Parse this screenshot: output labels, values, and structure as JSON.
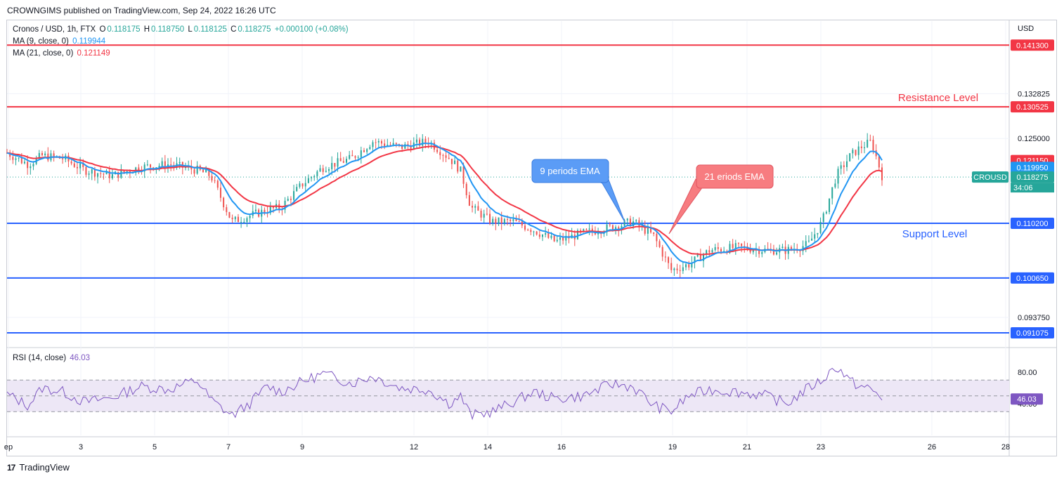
{
  "header": {
    "publisher": "CROWNGIMS published on TradingView.com, Sep 24, 2022 16:26 UTC"
  },
  "legend": {
    "symbol": "Cronos / USD, 1h, FTX",
    "o_label": "O",
    "o_value": "0.118175",
    "h_label": "H",
    "h_value": "0.118750",
    "l_label": "L",
    "l_value": "0.118125",
    "c_label": "C",
    "c_value": "0.118275",
    "change": "+0.000100 (+0.08%)",
    "ma9_label": "MA (9, close, 0)",
    "ma9_value": "0.119944",
    "ma21_label": "MA (21, close, 0)",
    "ma21_value": "0.121149"
  },
  "rsi_legend": {
    "label": "RSI (14, close)",
    "value": "46.03"
  },
  "footer": {
    "brand": "TradingView",
    "logo_text": "17"
  },
  "colors": {
    "resistance": "#f23645",
    "support": "#2962ff",
    "ema9": "#2196f3",
    "ema21": "#f23645",
    "candle_up": "#26a69a",
    "candle_down": "#ef5350",
    "rsi": "#7e57c2",
    "rsi_band": "#ede7f6",
    "price_tag": "#26a69a",
    "text_green": "#26a69a"
  },
  "chart_data": {
    "type": "candlestick",
    "currency": "USD",
    "price_axis_ticks": [
      "0.132825",
      "0.125000",
      "0.093750"
    ],
    "x_tick_labels": [
      "ep",
      "3",
      "5",
      "7",
      "9",
      "12",
      "14",
      "16",
      "19",
      "21",
      "23",
      "26",
      "28"
    ],
    "ylim": [
      0.0885,
      0.1455
    ],
    "horizontal_lines": [
      {
        "price": 0.1413,
        "label": "0.141300",
        "kind": "resistance"
      },
      {
        "price": 0.130525,
        "label": "0.130525",
        "kind": "resistance"
      },
      {
        "price": 0.1102,
        "label": "0.110200",
        "kind": "support"
      },
      {
        "price": 0.10065,
        "label": "0.100650",
        "kind": "support"
      },
      {
        "price": 0.091075,
        "label": "0.091075",
        "kind": "support"
      }
    ],
    "price_labels": [
      {
        "value": "0.121150",
        "series": "ma21",
        "price": 0.12115
      },
      {
        "value": "0.119950",
        "series": "ma9",
        "price": 0.11995
      },
      {
        "value": "0.118275",
        "series": "price",
        "price": 0.118275
      }
    ],
    "symbol_tag": "CROUSD",
    "countdown": "34:06",
    "annotations": {
      "resistance_text": "Resistance Level",
      "support_text": "Support Level",
      "ema9_callout": "9 periods EMA",
      "ema21_callout": "21 eriods EMA"
    },
    "price_path": [
      [
        0,
        0.1225
      ],
      [
        0.03,
        0.1205
      ],
      [
        0.05,
        0.122
      ],
      [
        0.08,
        0.1215
      ],
      [
        0.11,
        0.1195
      ],
      [
        0.15,
        0.1185
      ],
      [
        0.19,
        0.12
      ],
      [
        0.23,
        0.1205
      ],
      [
        0.27,
        0.1195
      ],
      [
        0.29,
        0.1185
      ],
      [
        0.32,
        0.1105
      ],
      [
        0.345,
        0.1115
      ],
      [
        0.37,
        0.1125
      ],
      [
        0.39,
        0.113
      ],
      [
        0.42,
        0.117
      ],
      [
        0.45,
        0.12
      ],
      [
        0.49,
        0.1215
      ],
      [
        0.52,
        0.1245
      ],
      [
        0.56,
        0.1235
      ],
      [
        0.6,
        0.1245
      ],
      [
        0.63,
        0.1215
      ],
      [
        0.645,
        0.1195
      ],
      [
        0.66,
        0.113
      ],
      [
        0.69,
        0.1105
      ],
      [
        0.72,
        0.1105
      ],
      [
        0.75,
        0.109
      ],
      [
        0.78,
        0.107
      ],
      [
        0.82,
        0.1085
      ],
      [
        0.86,
        0.1095
      ],
      [
        0.89,
        0.1105
      ],
      [
        0.92,
        0.108
      ],
      [
        0.945,
        0.102
      ],
      [
        0.97,
        0.103
      ],
      [
        1.0,
        0.1055
      ],
      [
        1.04,
        0.106
      ],
      [
        1.08,
        0.1055
      ],
      [
        1.11,
        0.1055
      ],
      [
        1.14,
        0.1065
      ],
      [
        1.16,
        0.1105
      ],
      [
        1.18,
        0.1185
      ],
      [
        1.2,
        0.122
      ],
      [
        1.215,
        0.1235
      ],
      [
        1.23,
        0.1245
      ],
      [
        1.245,
        0.1185
      ]
    ],
    "rsi": {
      "upper": 70,
      "lower": 30,
      "mid": 50,
      "tick_labels": [
        "80.00",
        "40.00"
      ],
      "current": "46.03",
      "path": [
        [
          0,
          52
        ],
        [
          0.03,
          38
        ],
        [
          0.05,
          60
        ],
        [
          0.08,
          55
        ],
        [
          0.11,
          42
        ],
        [
          0.15,
          48
        ],
        [
          0.19,
          62
        ],
        [
          0.23,
          58
        ],
        [
          0.27,
          70
        ],
        [
          0.29,
          45
        ],
        [
          0.32,
          25
        ],
        [
          0.345,
          40
        ],
        [
          0.37,
          62
        ],
        [
          0.39,
          55
        ],
        [
          0.42,
          68
        ],
        [
          0.45,
          78
        ],
        [
          0.49,
          66
        ],
        [
          0.52,
          75
        ],
        [
          0.56,
          60
        ],
        [
          0.6,
          58
        ],
        [
          0.63,
          40
        ],
        [
          0.645,
          50
        ],
        [
          0.66,
          25
        ],
        [
          0.69,
          30
        ],
        [
          0.72,
          42
        ],
        [
          0.75,
          55
        ],
        [
          0.78,
          46
        ],
        [
          0.82,
          50
        ],
        [
          0.86,
          65
        ],
        [
          0.89,
          62
        ],
        [
          0.92,
          38
        ],
        [
          0.945,
          30
        ],
        [
          0.97,
          50
        ],
        [
          1.0,
          58
        ],
        [
          1.04,
          55
        ],
        [
          1.08,
          50
        ],
        [
          1.11,
          40
        ],
        [
          1.14,
          60
        ],
        [
          1.16,
          70
        ],
        [
          1.18,
          88
        ],
        [
          1.2,
          68
        ],
        [
          1.215,
          62
        ],
        [
          1.23,
          58
        ],
        [
          1.245,
          46
        ]
      ]
    }
  }
}
